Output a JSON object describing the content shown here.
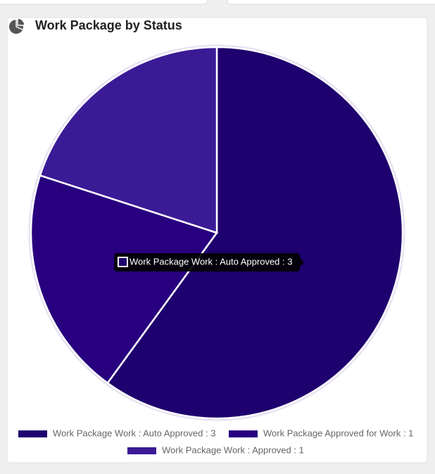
{
  "chart_data": {
    "type": "pie",
    "title": "Work Package by Status",
    "values": [
      3,
      1,
      1
    ],
    "value_labels": [
      "Work Package Work : Auto Approved : 3",
      "Work Package Approved for Work : 1",
      "Work Package Work : Approved : 1"
    ],
    "colors": [
      "#1e006e",
      "#28007f",
      "#3b1a96"
    ],
    "tooltip": "Work Package Work : Auto Approved : 3"
  }
}
